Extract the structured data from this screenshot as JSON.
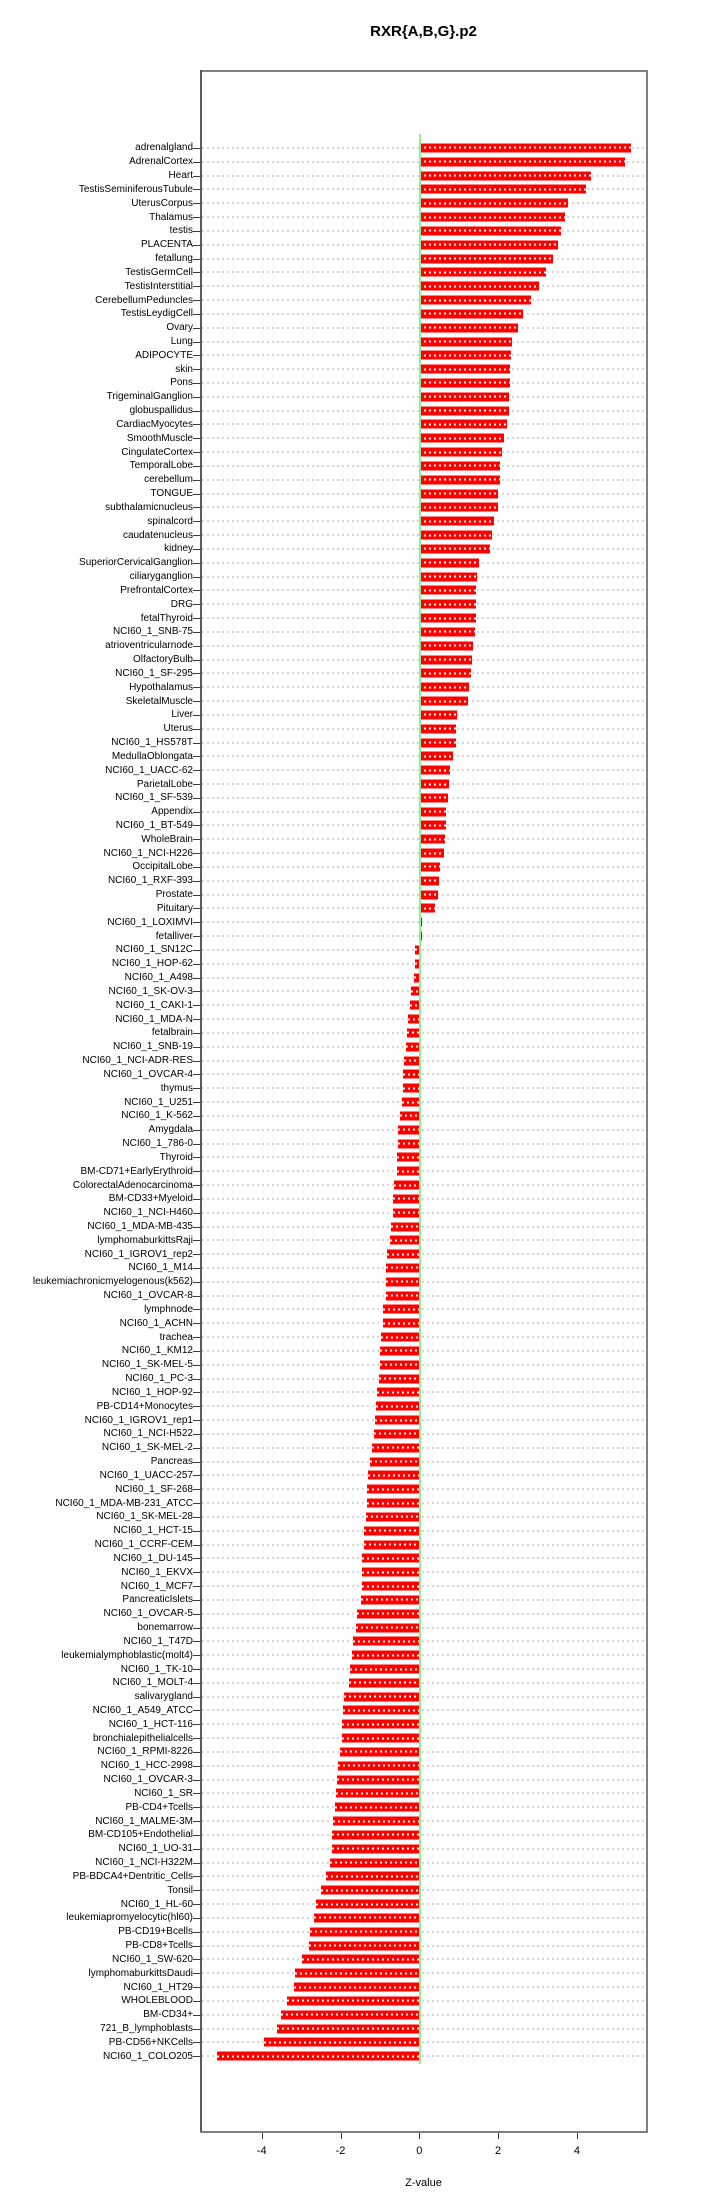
{
  "chart_data": {
    "type": "bar",
    "orientation": "horizontal",
    "title": "RXR{A,B,G}.p2",
    "xlabel": "Z-value",
    "x_ticks": [
      -4,
      -2,
      0,
      2,
      4
    ],
    "xlim": [
      -5.6,
      5.8
    ],
    "grid": "dashed horizontal per category",
    "legend": "none",
    "colors": {
      "bar": "#ff0000",
      "zero_line": "#90ee90",
      "gridline": "#d7d7d7",
      "box": "#7f7f7f"
    },
    "categories": [
      "adrenalgland",
      "AdrenalCortex",
      "Heart",
      "TestisSeminiferousTubule",
      "UterusCorpus",
      "Thalamus",
      "testis",
      "PLACENTA",
      "fetallung",
      "TestisGermCell",
      "TestisInterstitial",
      "CerebellumPeduncles",
      "TestisLeydigCell",
      "Ovary",
      "Lung",
      "ADIPOCYTE",
      "skin",
      "Pons",
      "TrigeminalGanglion",
      "globuspallidus",
      "CardiacMyocytes",
      "SmoothMuscle",
      "CingulateCortex",
      "TemporalLobe",
      "cerebellum",
      "TONGUE",
      "subthalamicnucleus",
      "spinalcord",
      "caudatenucleus",
      "kidney",
      "SuperiorCervicalGanglion",
      "ciliaryganglion",
      "PrefrontalCortex",
      "DRG",
      "fetalThyroid",
      "NCI60_1_SNB-75",
      "atrioventricularnode",
      "OlfactoryBulb",
      "NCI60_1_SF-295",
      "Hypothalamus",
      "SkeletalMuscle",
      "Liver",
      "Uterus",
      "NCI60_1_HS578T",
      "MedullaOblongata",
      "NCI60_1_UACC-62",
      "ParietalLobe",
      "NCI60_1_SF-539",
      "Appendix",
      "NCI60_1_BT-549",
      "WholeBrain",
      "NCI60_1_NCI-H226",
      "OccipitalLobe",
      "NCI60_1_RXF-393",
      "Prostate",
      "Pituitary",
      "NCI60_1_LOXIMVI",
      "fetalliver",
      "NCI60_1_SN12C",
      "NCI60_1_HOP-62",
      "NCI60_1_A498",
      "NCI60_1_SK-OV-3",
      "NCI60_1_CAKI-1",
      "NCI60_1_MDA-N",
      "fetalbrain",
      "NCI60_1_SNB-19",
      "NCI60_1_NCI-ADR-RES",
      "NCI60_1_OVCAR-4",
      "thymus",
      "NCI60_1_U251",
      "NCI60_1_K-562",
      "Amygdala",
      "NCI60_1_786-0",
      "Thyroid",
      "BM-CD71+EarlyErythroid",
      "ColorectalAdenocarcinoma",
      "BM-CD33+Myeloid",
      "NCI60_1_NCI-H460",
      "NCI60_1_MDA-MB-435",
      "lymphomaburkittsRaji",
      "NCI60_1_IGROV1_rep2",
      "NCI60_1_M14",
      "leukemiachronicmyelogenous(k562)",
      "NCI60_1_OVCAR-8",
      "lymphnode",
      "NCI60_1_ACHN",
      "trachea",
      "NCI60_1_KM12",
      "NCI60_1_SK-MEL-5",
      "NCI60_1_PC-3",
      "NCI60_1_HOP-92",
      "PB-CD14+Monocytes",
      "NCI60_1_IGROV1_rep1",
      "NCI60_1_NCI-H522",
      "NCI60_1_SK-MEL-2",
      "Pancreas",
      "NCI60_1_UACC-257",
      "NCI60_1_SF-268",
      "NCI60_1_MDA-MB-231_ATCC",
      "NCI60_1_SK-MEL-28",
      "NCI60_1_HCT-15",
      "NCI60_1_CCRF-CEM",
      "NCI60_1_DU-145",
      "NCI60_1_EKVX",
      "NCI60_1_MCF7",
      "PancreaticIslets",
      "NCI60_1_OVCAR-5",
      "bonemarrow",
      "NCI60_1_T47D",
      "leukemialymphoblastic(molt4)",
      "NCI60_1_TK-10",
      "NCI60_1_MOLT-4",
      "salivarygland",
      "NCI60_1_A549_ATCC",
      "NCI60_1_HCT-116",
      "bronchialepithelialcells",
      "NCI60_1_RPMI-8226",
      "NCI60_1_HCC-2998",
      "NCI60_1_OVCAR-3",
      "NCI60_1_SR",
      "PB-CD4+Tcells",
      "NCI60_1_MALME-3M",
      "BM-CD105+Endothelial",
      "NCI60_1_UO-31",
      "NCI60_1_NCI-H322M",
      "PB-BDCA4+Dentritic_Cells",
      "Tonsil",
      "NCI60_1_HL-60",
      "leukemiapromyelocytic(hl60)",
      "PB-CD19+Bcells",
      "PB-CD8+Tcells",
      "NCI60_1_SW-620",
      "lymphomaburkittsDaudi",
      "NCI60_1_HT29",
      "WHOLEBLOOD",
      "BM-CD34+",
      "721_B_lymphoblasts",
      "PB-CD56+NKCells",
      "NCI60_1_COLO205"
    ],
    "values": [
      5.38,
      5.23,
      4.35,
      4.23,
      3.77,
      3.7,
      3.6,
      3.51,
      3.39,
      3.21,
      3.03,
      2.83,
      2.62,
      2.5,
      2.36,
      2.32,
      2.31,
      2.29,
      2.28,
      2.27,
      2.23,
      2.16,
      2.09,
      2.06,
      2.05,
      2.01,
      2.0,
      1.9,
      1.85,
      1.79,
      1.52,
      1.46,
      1.45,
      1.45,
      1.44,
      1.42,
      1.36,
      1.33,
      1.31,
      1.25,
      1.24,
      0.95,
      0.94,
      0.92,
      0.86,
      0.79,
      0.76,
      0.73,
      0.69,
      0.68,
      0.64,
      0.63,
      0.53,
      0.49,
      0.47,
      0.41,
      0.08,
      0.06,
      -0.11,
      -0.12,
      -0.14,
      -0.2,
      -0.24,
      -0.29,
      -0.3,
      -0.33,
      -0.38,
      -0.41,
      -0.42,
      -0.43,
      -0.5,
      -0.54,
      -0.55,
      -0.56,
      -0.57,
      -0.64,
      -0.66,
      -0.67,
      -0.73,
      -0.74,
      -0.82,
      -0.84,
      -0.85,
      -0.85,
      -0.91,
      -0.93,
      -0.96,
      -0.99,
      -1.01,
      -1.03,
      -1.08,
      -1.09,
      -1.13,
      -1.16,
      -1.2,
      -1.25,
      -1.31,
      -1.33,
      -1.34,
      -1.35,
      -1.4,
      -1.41,
      -1.45,
      -1.46,
      -1.46,
      -1.48,
      -1.59,
      -1.6,
      -1.69,
      -1.7,
      -1.75,
      -1.79,
      -1.9,
      -1.93,
      -1.95,
      -1.97,
      -2.01,
      -2.06,
      -2.09,
      -2.11,
      -2.13,
      -2.2,
      -2.22,
      -2.22,
      -2.26,
      -2.37,
      -2.49,
      -2.62,
      -2.67,
      -2.78,
      -2.79,
      -2.97,
      -3.15,
      -3.18,
      -3.37,
      -3.5,
      -3.61,
      -3.95,
      -5.13
    ]
  }
}
